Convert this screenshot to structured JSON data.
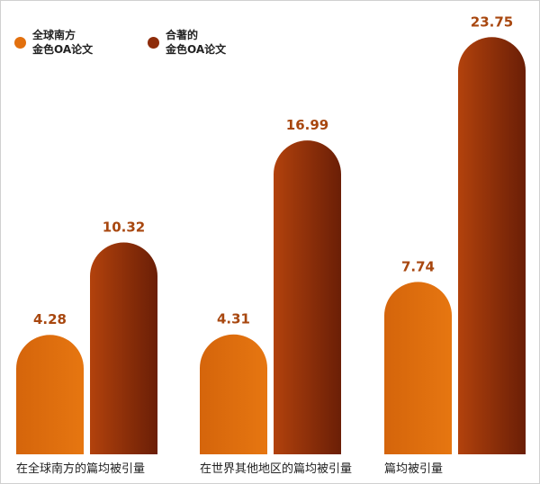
{
  "chart_data": {
    "type": "bar",
    "categories": [
      "在全球南方的篇均被引量",
      "在世界其他地区的篇均被引量",
      "篇均被引量"
    ],
    "series": [
      {
        "name": "全球南方\n金色OA论文",
        "color": "#e2700e",
        "values": [
          4.28,
          4.31,
          7.74
        ]
      },
      {
        "name": "合著的\n金色OA论文",
        "color": "#8e2c0a",
        "values": [
          10.32,
          16.99,
          23.75
        ]
      }
    ],
    "legend": "top-left"
  }
}
